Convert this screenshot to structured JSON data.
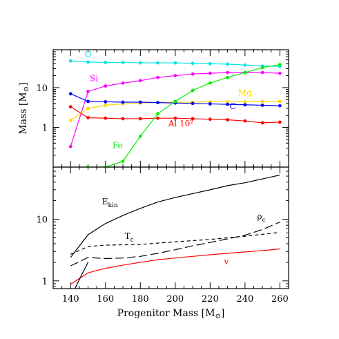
{
  "chart_data": [
    {
      "type": "line",
      "ylabel": "Mass [M",
      "ylabel_sub": "⊙",
      "ylabel_end": "]",
      "x_range": [
        130,
        265
      ],
      "y_range": [
        0.1,
        90
      ],
      "y_scale": "log",
      "y_ticks": [
        1,
        10
      ],
      "y_tick_labels": [
        "1",
        "10"
      ],
      "x_ticks": [
        140,
        160,
        180,
        200,
        220,
        240,
        260
      ],
      "grid": false,
      "x": [
        140,
        150,
        160,
        170,
        180,
        190,
        200,
        210,
        220,
        230,
        240,
        250,
        260
      ],
      "series": [
        {
          "name": "O",
          "color": "#00e5e5",
          "values": [
            47,
            44,
            43,
            43,
            42,
            42,
            42,
            41,
            40,
            39,
            37,
            35,
            34
          ]
        },
        {
          "name": "Si",
          "color": "#ff00ff",
          "values": [
            0.33,
            8,
            11,
            13,
            15,
            18,
            20,
            22,
            23,
            24,
            24,
            24,
            23
          ]
        },
        {
          "name": "Mg",
          "color": "#ffd700",
          "values": [
            1.5,
            3,
            3.6,
            3.9,
            4.1,
            4.2,
            4.3,
            4.3,
            4.4,
            4.4,
            4.4,
            4.5,
            4.5
          ]
        },
        {
          "name": "C",
          "color": "#0000ff",
          "values": [
            7,
            4.5,
            4.4,
            4.3,
            4.3,
            4.2,
            4.1,
            4.0,
            3.9,
            3.8,
            3.7,
            3.6,
            3.5
          ]
        },
        {
          "name": "Al 10²",
          "color": "#ff0000",
          "values": [
            3.3,
            1.75,
            1.7,
            1.65,
            1.65,
            1.7,
            1.7,
            1.65,
            1.6,
            1.55,
            1.45,
            1.3,
            1.35
          ]
        },
        {
          "name": "Fe",
          "color": "#00ee00",
          "values": [
            null,
            0.1,
            0.1,
            0.14,
            0.6,
            2.2,
            4.5,
            8.5,
            13,
            18,
            24,
            32,
            38
          ]
        }
      ]
    },
    {
      "type": "line",
      "xlabel": "Progenitor Mass [M",
      "xlabel_sub": "⊙",
      "xlabel_end": "]",
      "x_range": [
        130,
        265
      ],
      "y_range": [
        0.75,
        70
      ],
      "y_scale": "log",
      "y_ticks": [
        1,
        10
      ],
      "y_tick_labels": [
        "1",
        "10"
      ],
      "x_ticks": [
        140,
        160,
        180,
        200,
        220,
        240,
        260
      ],
      "x_tick_labels": [
        "140",
        "160",
        "180",
        "200",
        "220",
        "240",
        "260"
      ],
      "grid": false,
      "series": [
        {
          "name": "E",
          "name_sub": "kin",
          "style": "solid",
          "color": "#000000",
          "x": [
            140,
            150,
            160,
            170,
            180,
            190,
            200,
            210,
            220,
            230,
            240,
            250,
            260
          ],
          "values": [
            2.4,
            5.6,
            8.5,
            11.5,
            15,
            19,
            22.5,
            26,
            30,
            35,
            39,
            45,
            52
          ]
        },
        {
          "name": "T",
          "name_sub": "c",
          "style": "dashed",
          "color": "#000000",
          "x": [
            140,
            150,
            160,
            170,
            180,
            190,
            200,
            210,
            220,
            230,
            240,
            250,
            260
          ],
          "values": [
            2.7,
            3.6,
            3.8,
            3.85,
            3.9,
            4.1,
            4.3,
            4.5,
            4.7,
            5.0,
            5.3,
            5.7,
            6.1
          ]
        },
        {
          "name": "ρ",
          "name_sub": "c",
          "style": "longdash",
          "color": "#000000",
          "x": [
            140,
            150,
            160,
            170,
            180,
            190,
            200,
            210,
            220,
            230,
            240,
            250,
            260
          ],
          "values": [
            1.75,
            2.4,
            2.3,
            2.35,
            2.5,
            2.8,
            3.2,
            3.7,
            4.2,
            4.8,
            5.5,
            6.8,
            9
          ]
        },
        {
          "name": "v",
          "style": "solid",
          "color": "#ff0000",
          "x": [
            140,
            150,
            160,
            170,
            180,
            190,
            200,
            210,
            220,
            230,
            240,
            250,
            260
          ],
          "values": [
            0.88,
            1.35,
            1.6,
            1.8,
            2.0,
            2.2,
            2.35,
            2.5,
            2.65,
            2.8,
            2.95,
            3.1,
            3.3
          ]
        },
        {
          "name": "",
          "style": "solid",
          "color": "#000000",
          "x": [
            142,
            146,
            150
          ],
          "values": [
            0.7,
            1.2,
            2.0
          ]
        }
      ]
    }
  ]
}
